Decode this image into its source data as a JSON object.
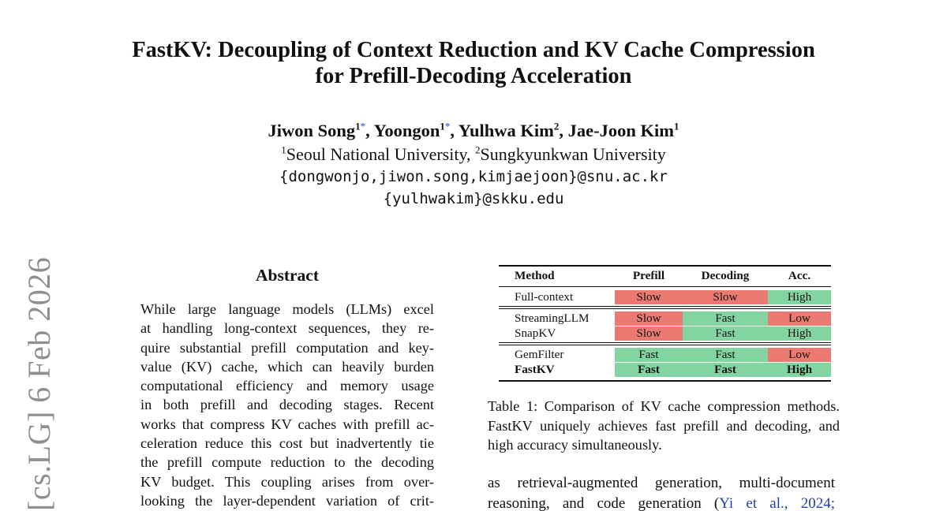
{
  "side_stamp": "[cs.LG]  6 Feb 2026",
  "title": {
    "line1": "FastKV: Decoupling of Context Reduction and KV Cache Compression",
    "line2": "for Prefill-Decoding Acceleration"
  },
  "authors": [
    {
      "name": "Jiwon Song",
      "affil": "1",
      "star": "*"
    },
    {
      "name": "Yoongon",
      "affil": "1",
      "star": "*"
    },
    {
      "name": "Yulhwa Kim",
      "affil": "2",
      "star": ""
    },
    {
      "name": "Jae-Joon Kim",
      "affil": "1",
      "star": ""
    }
  ],
  "affiliations": {
    "a1_num": "1",
    "a1": "Seoul National University, ",
    "a2_num": "2",
    "a2": "Sungkyunkwan University"
  },
  "emails": {
    "line1": "{dongwonjo,jiwon.song,kimjaejoon}@snu.ac.kr",
    "line2": "{yulhwakim}@skku.edu"
  },
  "abstract": {
    "heading": "Abstract",
    "lines": [
      "While large language models (LLMs) excel",
      "at handling long-context sequences, they re-",
      "quire substantial prefill computation and key-",
      "value (KV) cache, which can heavily burden",
      "computational efficiency and memory usage",
      "in both prefill and decoding stages.  Recent",
      "works that compress KV caches with prefill ac-",
      "celeration reduce this cost but inadvertently tie",
      "the prefill compute reduction to the decoding",
      "KV budget.  This coupling arises from over-",
      "looking the layer-dependent variation of crit-"
    ]
  },
  "table": {
    "headers": [
      "Method",
      "Prefill",
      "Decoding",
      "Acc."
    ],
    "groups": [
      [
        {
          "method": "Full-context",
          "prefill": "Slow",
          "decoding": "Slow",
          "acc": "High",
          "bold": false
        }
      ],
      [
        {
          "method": "StreamingLLM",
          "prefill": "Slow",
          "decoding": "Fast",
          "acc": "Low",
          "bold": false
        },
        {
          "method": "SnapKV",
          "prefill": "Slow",
          "decoding": "Fast",
          "acc": "High",
          "bold": false
        }
      ],
      [
        {
          "method": "GemFilter",
          "prefill": "Fast",
          "decoding": "Fast",
          "acc": "Low",
          "bold": false
        },
        {
          "method": "FastKV",
          "prefill": "Fast",
          "decoding": "Fast",
          "acc": "High",
          "bold": true
        }
      ]
    ],
    "colors": {
      "bad": "#ea7a72",
      "good": "#82d4a0"
    }
  },
  "caption": {
    "lines": [
      "Table 1: Comparison of KV cache compression methods.",
      "FastKV uniquely achieves fast prefill and decoding, and",
      "high accuracy simultaneously."
    ]
  },
  "body_right": {
    "line1": "as retrieval-augmented generation, multi-document",
    "line2_text": "reasoning, and code generation (",
    "line2_cite": "Yi et al., 2024",
    "line2_tail": ";"
  }
}
